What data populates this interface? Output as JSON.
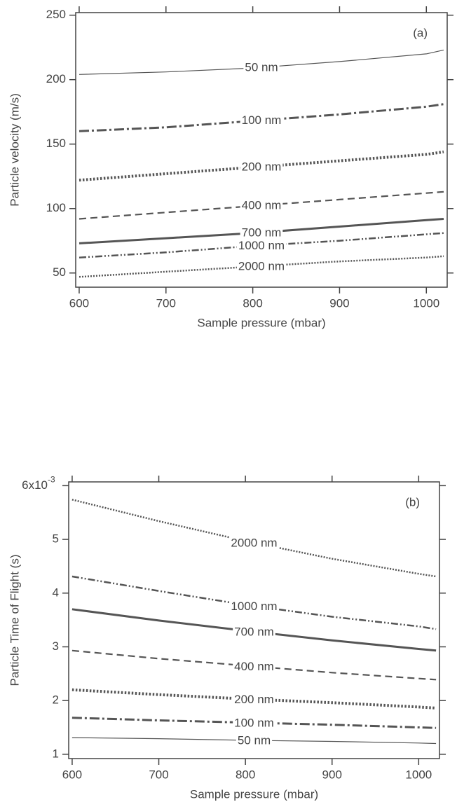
{
  "chart_data": [
    {
      "type": "line",
      "annotation": "(a)",
      "x_label": "Sample pressure (mbar)",
      "y_label": "Particle velocity (m/s)",
      "x": [
        600,
        700,
        800,
        900,
        1000,
        1020
      ],
      "xlim": [
        596,
        1024
      ],
      "xticks": [
        600,
        700,
        800,
        900,
        1000
      ],
      "ylim": [
        39,
        252
      ],
      "yticks": [
        50,
        100,
        150,
        200,
        250
      ],
      "series": [
        {
          "name": "50 nm",
          "color": "#555555",
          "style": "thin-solid",
          "values": [
            204,
            206,
            209,
            214,
            220,
            223
          ]
        },
        {
          "name": "100 nm",
          "color": "#555555",
          "style": "dash-dot",
          "values": [
            160,
            163,
            168,
            173,
            179,
            181
          ]
        },
        {
          "name": "200 nm",
          "color": "#555555",
          "style": "thick-dotted",
          "values": [
            122,
            127,
            132,
            137,
            142,
            144
          ]
        },
        {
          "name": "400 nm",
          "color": "#555555",
          "style": "dashed",
          "values": [
            92,
            97,
            102,
            107,
            112,
            113
          ]
        },
        {
          "name": "700 nm",
          "color": "#555555",
          "style": "thick-solid",
          "values": [
            73,
            77,
            81,
            86,
            91,
            92
          ]
        },
        {
          "name": "1000 nm",
          "color": "#555555",
          "style": "dash-dot-dot",
          "values": [
            62,
            66,
            71,
            75,
            80,
            81
          ]
        },
        {
          "name": "2000 nm",
          "color": "#555555",
          "style": "thin-dotted",
          "values": [
            47,
            51,
            55,
            59,
            62,
            63
          ]
        }
      ]
    },
    {
      "type": "line",
      "annotation": "(b)",
      "x_label": "Sample pressure (mbar)",
      "y_label": "Particle Time of Flight (s)",
      "x": [
        600,
        700,
        800,
        900,
        1000,
        1020
      ],
      "xlim": [
        596,
        1024
      ],
      "xticks": [
        600,
        700,
        800,
        900,
        1000
      ],
      "ylim": [
        0.92,
        6.07
      ],
      "yticks": [
        1,
        2,
        3,
        4,
        5,
        {
          "value": 6,
          "label": "6x10"
        }
      ],
      "ytick_exponent": "-3",
      "series": [
        {
          "name": "2000 nm",
          "color": "#555555",
          "style": "thin-dotted",
          "values": [
            5.74,
            5.34,
            4.97,
            4.64,
            4.36,
            4.31
          ]
        },
        {
          "name": "1000 nm",
          "color": "#555555",
          "style": "dash-dot-dot",
          "values": [
            4.31,
            4.04,
            3.78,
            3.56,
            3.38,
            3.33
          ]
        },
        {
          "name": "700 nm",
          "color": "#555555",
          "style": "thick-solid",
          "values": [
            3.7,
            3.49,
            3.3,
            3.12,
            2.96,
            2.93
          ]
        },
        {
          "name": "400 nm",
          "color": "#555555",
          "style": "dashed",
          "values": [
            2.93,
            2.78,
            2.65,
            2.52,
            2.41,
            2.39
          ]
        },
        {
          "name": "200 nm",
          "color": "#555555",
          "style": "thick-dotted",
          "values": [
            2.2,
            2.11,
            2.03,
            1.96,
            1.88,
            1.86
          ]
        },
        {
          "name": "100 nm",
          "color": "#555555",
          "style": "dash-dot",
          "values": [
            1.68,
            1.63,
            1.59,
            1.55,
            1.5,
            1.49
          ]
        },
        {
          "name": "50 nm",
          "color": "#555555",
          "style": "thin-solid",
          "values": [
            1.31,
            1.29,
            1.26,
            1.24,
            1.21,
            1.2
          ]
        }
      ]
    }
  ]
}
